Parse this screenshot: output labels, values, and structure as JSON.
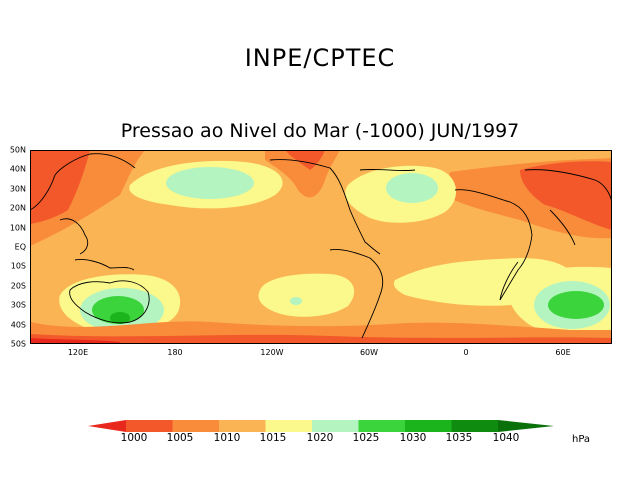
{
  "header": {
    "organization": "INPE/CPTEC",
    "title": "Pressao ao Nivel do Mar (-1000) JUN/1997"
  },
  "map": {
    "region": "Global 50N-50S, centered on Pacific",
    "latitude_labels": [
      "50N",
      "40N",
      "30N",
      "20N",
      "10N",
      "EQ",
      "10S",
      "20S",
      "30S",
      "40S",
      "50S"
    ],
    "longitude_labels": [
      "120E",
      "180",
      "120W",
      "60W",
      "0",
      "60E"
    ]
  },
  "legend": {
    "unit": "hPa",
    "levels": [
      "1000",
      "1005",
      "1010",
      "1015",
      "1020",
      "1025",
      "1030",
      "1035",
      "1040"
    ],
    "colors": [
      "#e8281c",
      "#f2582a",
      "#f88c3a",
      "#fbb454",
      "#fbf88c",
      "#b4f4c0",
      "#3cd43c",
      "#1cb41c",
      "#0f8c0f",
      "#0a700a"
    ]
  }
}
